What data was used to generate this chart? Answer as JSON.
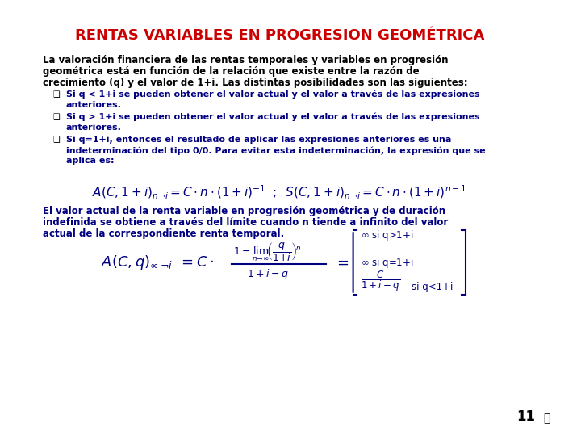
{
  "title": "RENTAS VARIABLES EN PROGRESION GEOMÉTRICA",
  "title_color": "#CC0000",
  "bg_color": "#FFFFFF",
  "text_color_dark": "#000080",
  "text_color_body": "#000000",
  "para1": "La valoración financiera de las rentas temporales y variables en progresión\ngeométrica está en función de la relación que existe entre la razón de\ncrecimiento (q) y el valor de 1+i. Las distintas posibilidades son las siguientes:",
  "bullet1": "Si q < 1+i se pueden obtener el valor actual y el valor a través de las expresiones\nanteriores.",
  "bullet2": "Si q > 1+i se pueden obtener el valor actual y el valor a través de las expresiones\nanteriores.",
  "bullet3": "Si q=1+i, entonces el resultado de aplicar las expresiones anteriores es una\nindeterminación del tipo 0/0. Para evitar esta indeterminación, la expresión que se\naaplica es:",
  "para2": "El valor actual de la renta variable en progresión geométrica y de duración\nindefinida se obtiene a través del límite cuando n tiende a infinito del valor\nactual de la correspondiente renta temporal.",
  "page_num": "11"
}
